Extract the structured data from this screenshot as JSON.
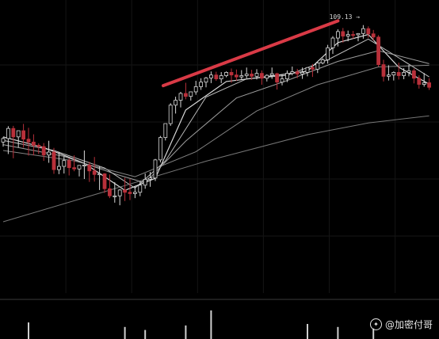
{
  "watermark": {
    "text": "@加密付哥",
    "icon": "sparkle-icon"
  },
  "chart_data": {
    "type": "candlestick",
    "grid": true,
    "colors": {
      "up": "#d9d9d9",
      "down": "#b8303a",
      "ma": [
        "#ffffff",
        "#e0e0e0",
        "#b8b8b8",
        "#9a9a9a",
        "#8a8a8a"
      ],
      "trend_arrow": "#d93a46"
    },
    "peak_label": "10​​9.13 →",
    "ylim": [
      0,
      100
    ],
    "candles": [
      [
        66.6,
        68.2,
        67.7,
        65.2
      ],
      [
        67.7,
        71.5,
        70.8,
        62.9
      ],
      [
        70.8,
        71.6,
        68.2,
        61.6
      ],
      [
        68.2,
        70.1,
        70.1,
        64.9
      ],
      [
        70.1,
        72.2,
        67.5,
        64.9
      ],
      [
        67.5,
        71.0,
        66.6,
        62.4
      ],
      [
        66.6,
        69.0,
        65.6,
        62.5
      ],
      [
        65.6,
        66.2,
        65.2,
        62.9
      ],
      [
        65.2,
        66.3,
        62.6,
        60.8
      ],
      [
        62.6,
        67.0,
        63.5,
        60.2
      ],
      [
        63.5,
        64.8,
        58.1,
        56.8
      ],
      [
        58.1,
        63.6,
        59.1,
        56.7
      ],
      [
        59.1,
        62.2,
        60.9,
        56.9
      ],
      [
        60.9,
        61.6,
        58.7,
        56.3
      ],
      [
        58.7,
        62.5,
        58.3,
        57.6
      ],
      [
        58.3,
        58.9,
        59.4,
        56.0
      ],
      [
        59.4,
        64.0,
        59.5,
        55.2
      ],
      [
        59.5,
        60.5,
        57.7,
        54.3
      ],
      [
        57.7,
        62.0,
        56.6,
        54.4
      ],
      [
        56.6,
        59.2,
        56.8,
        51.8
      ],
      [
        56.8,
        57.0,
        52.2,
        50.9
      ],
      [
        52.2,
        56.6,
        50.0,
        49.3
      ],
      [
        50.0,
        54.2,
        50.0,
        47.9
      ],
      [
        50.0,
        52.1,
        51.8,
        47.1
      ],
      [
        51.8,
        55.6,
        51.1,
        48.4
      ],
      [
        51.1,
        55.2,
        50.7,
        48.7
      ],
      [
        50.7,
        53.1,
        51.1,
        49.3
      ],
      [
        51.1,
        54.6,
        53.3,
        49.9
      ],
      [
        53.3,
        56.9,
        55.1,
        52.2
      ],
      [
        55.1,
        57.4,
        55.5,
        52.8
      ],
      [
        55.5,
        61.4,
        61.1,
        54.6
      ],
      [
        61.1,
        68.5,
        68.0,
        60.3
      ],
      [
        68.0,
        72.3,
        72.3,
        67.1
      ],
      [
        72.3,
        78.6,
        78.0,
        71.6
      ],
      [
        78.0,
        80.6,
        79.5,
        75.4
      ],
      [
        79.5,
        82.1,
        81.6,
        77.3
      ],
      [
        81.6,
        84.9,
        80.7,
        79.8
      ],
      [
        80.7,
        81.7,
        82.1,
        79.4
      ],
      [
        82.1,
        85.5,
        83.7,
        81.2
      ],
      [
        83.7,
        86.3,
        85.1,
        82.7
      ],
      [
        85.1,
        86.7,
        86.4,
        83.5
      ],
      [
        86.4,
        88.4,
        87.3,
        84.8
      ],
      [
        87.3,
        88.3,
        86.1,
        85.5
      ],
      [
        86.1,
        88.2,
        87.1,
        84.8
      ],
      [
        87.1,
        88.4,
        88.1,
        86.6
      ],
      [
        88.1,
        89.3,
        87.3,
        84.9
      ],
      [
        87.3,
        89.0,
        86.7,
        85.5
      ],
      [
        86.7,
        88.8,
        87.1,
        86.0
      ],
      [
        87.1,
        89.6,
        87.6,
        86.3
      ],
      [
        87.6,
        88.9,
        86.9,
        85.8
      ],
      [
        86.9,
        89.1,
        87.8,
        85.9
      ],
      [
        87.8,
        88.7,
        86.3,
        84.3
      ],
      [
        86.3,
        87.5,
        87.2,
        85.3
      ],
      [
        87.2,
        89.6,
        87.7,
        86.1
      ],
      [
        87.7,
        88.0,
        85.1,
        82.8
      ],
      [
        85.1,
        87.5,
        86.1,
        84.1
      ],
      [
        86.1,
        88.7,
        87.8,
        85.1
      ],
      [
        87.8,
        89.9,
        88.3,
        87.2
      ],
      [
        88.3,
        89.2,
        87.6,
        86.3
      ],
      [
        87.6,
        89.6,
        88.1,
        86.1
      ],
      [
        88.1,
        89.7,
        89.6,
        86.9
      ],
      [
        89.6,
        90.7,
        89.1,
        86.7
      ],
      [
        89.1,
        91.2,
        91.0,
        87.9
      ],
      [
        91.0,
        92.5,
        92.0,
        90.6
      ],
      [
        92.0,
        96.6,
        95.7,
        90.8
      ],
      [
        95.7,
        99.3,
        98.7,
        93.8
      ],
      [
        98.7,
        101.4,
        100.7,
        96.1
      ],
      [
        100.7,
        101.8,
        99.3,
        97.3
      ],
      [
        99.3,
        101.0,
        99.8,
        97.7
      ],
      [
        99.8,
        100.9,
        99.7,
        98.5
      ],
      [
        99.7,
        100.2,
        100.1,
        97.7
      ],
      [
        100.1,
        102.7,
        101.6,
        98.5
      ],
      [
        101.6,
        102.3,
        100.0,
        98.8
      ],
      [
        100.0,
        101.2,
        99.0,
        97.9
      ],
      [
        99.0,
        99.6,
        90.5,
        89.9
      ],
      [
        90.5,
        92.0,
        86.9,
        85.3
      ],
      [
        86.9,
        90.3,
        87.3,
        85.6
      ],
      [
        87.3,
        88.4,
        88.1,
        85.6
      ],
      [
        88.1,
        91.1,
        87.1,
        85.9
      ],
      [
        87.1,
        89.4,
        88.1,
        86.0
      ],
      [
        88.1,
        90.4,
        88.6,
        86.9
      ],
      [
        88.6,
        89.3,
        86.3,
        84.7
      ],
      [
        86.3,
        87.2,
        84.4,
        83.1
      ],
      [
        84.4,
        87.9,
        84.9,
        83.7
      ],
      [
        84.9,
        86.3,
        83.5,
        82.7
      ]
    ],
    "moving_averages": [
      {
        "points": [
          [
            0,
            68.2
          ],
          [
            8,
            64.9
          ],
          [
            16,
            60.1
          ],
          [
            24,
            51.7
          ],
          [
            30,
            55.4
          ],
          [
            36,
            76.5
          ],
          [
            44,
            85.3
          ],
          [
            52,
            86.8
          ],
          [
            60,
            88.5
          ],
          [
            66,
            97.3
          ],
          [
            72,
            99.8
          ],
          [
            78,
            89.7
          ],
          [
            84,
            84.5
          ]
        ]
      },
      {
        "points": [
          [
            0,
            67.1
          ],
          [
            10,
            64.0
          ],
          [
            20,
            58.6
          ],
          [
            26,
            52.4
          ],
          [
            32,
            60.8
          ],
          [
            40,
            80.5
          ],
          [
            48,
            86.1
          ],
          [
            56,
            87.2
          ],
          [
            64,
            92.0
          ],
          [
            72,
            98.4
          ],
          [
            78,
            92.6
          ],
          [
            84,
            86.7
          ]
        ]
      },
      {
        "points": [
          [
            0,
            65.8
          ],
          [
            12,
            62.2
          ],
          [
            22,
            56.8
          ],
          [
            28,
            54.0
          ],
          [
            36,
            66.9
          ],
          [
            46,
            80.2
          ],
          [
            56,
            85.6
          ],
          [
            66,
            91.5
          ],
          [
            74,
            94.8
          ],
          [
            84,
            90.8
          ]
        ]
      },
      {
        "points": [
          [
            0,
            64.0
          ],
          [
            14,
            60.8
          ],
          [
            26,
            55.9
          ],
          [
            38,
            63.6
          ],
          [
            50,
            76.2
          ],
          [
            62,
            84.3
          ],
          [
            74,
            89.8
          ],
          [
            84,
            90.3
          ]
        ]
      },
      {
        "points": [
          [
            0,
            42.0
          ],
          [
            20,
            51.3
          ],
          [
            40,
            60.7
          ],
          [
            60,
            68.9
          ],
          [
            72,
            72.5
          ],
          [
            84,
            74.7
          ]
        ]
      }
    ],
    "volume_bars": [
      {
        "i": 5,
        "v": 0.55
      },
      {
        "i": 24,
        "v": 0.4
      },
      {
        "i": 28,
        "v": 0.3
      },
      {
        "i": 36,
        "v": 0.45
      },
      {
        "i": 41,
        "v": 0.95
      },
      {
        "i": 60,
        "v": 0.5
      },
      {
        "i": 66,
        "v": 0.4
      },
      {
        "i": 73,
        "v": 0.35
      }
    ],
    "annotation_arrow": {
      "from": [
        30,
        84
      ],
      "to": [
        66,
        104
      ]
    }
  }
}
